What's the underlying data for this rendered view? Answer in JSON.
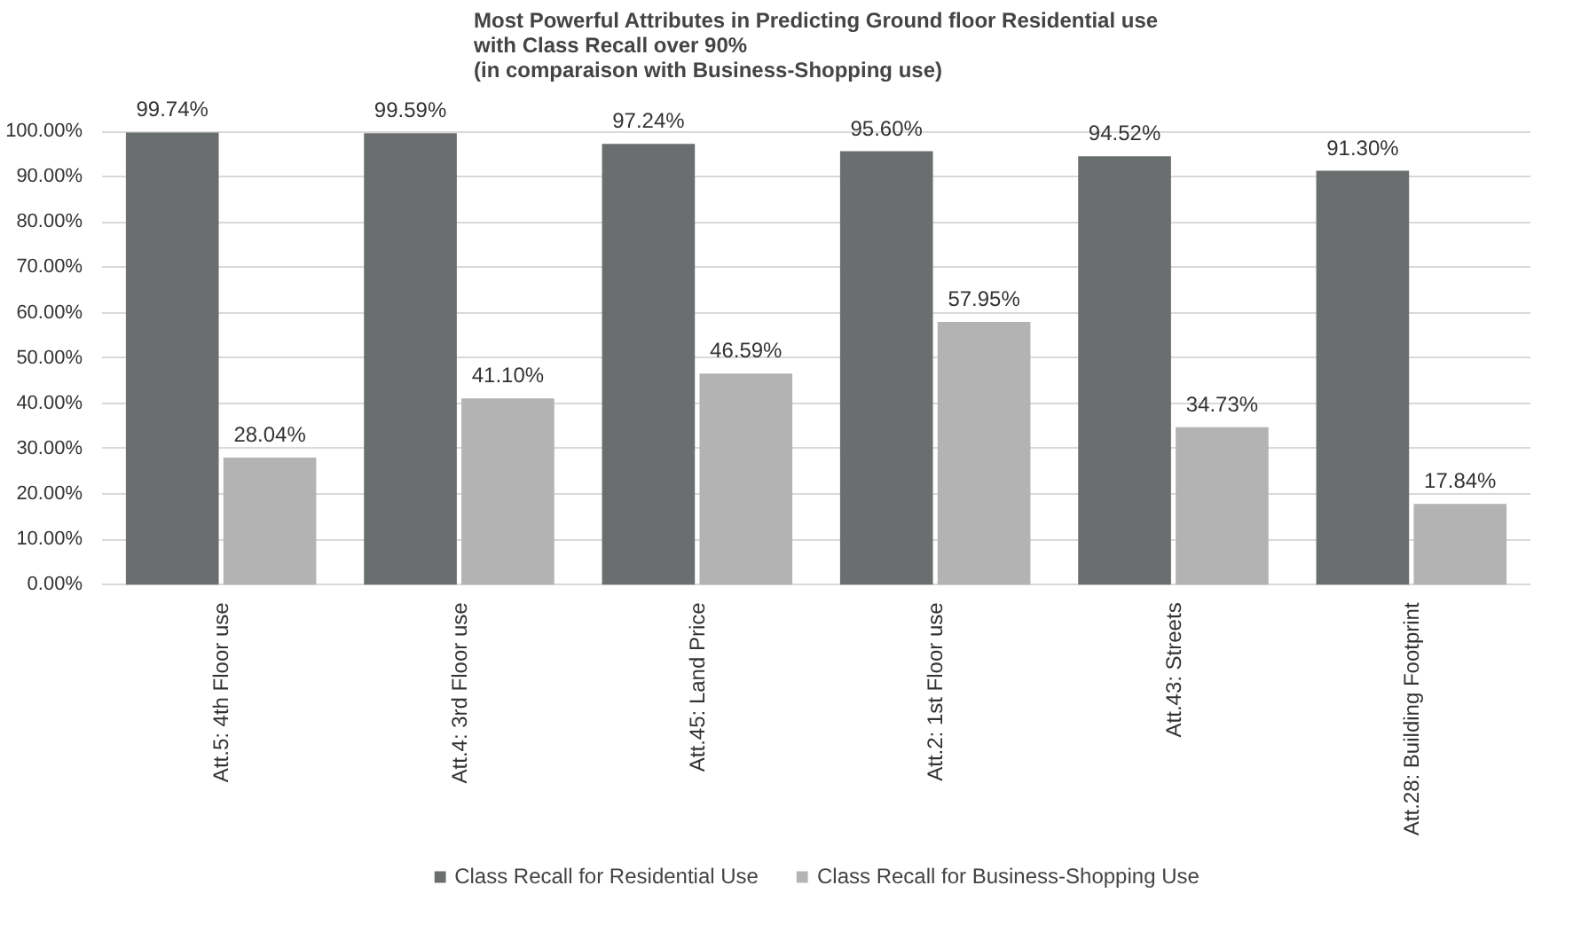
{
  "chart_data": {
    "type": "bar",
    "title": "Most Powerful Attributes in Predicting Ground floor Residential use\nwith Class Recall over 90%\n(in comparaison with Business-Shopping use)",
    "categories": [
      "Att.5: 4th Floor use",
      "Att.4: 3rd Floor use",
      "Att.45: Land Price",
      "Att.2: 1st Floor use",
      "Att.43: Streets",
      "Att.28: Building Footprint"
    ],
    "series": [
      {
        "name": "Class Recall for Residential Use",
        "color": "#6b6e6e",
        "values": [
          99.74,
          99.59,
          97.24,
          95.6,
          94.52,
          91.3
        ],
        "value_labels": [
          "99.74%",
          "99.59%",
          "97.24%",
          "95.60%",
          "94.52%",
          "91.30%"
        ]
      },
      {
        "name": "Class Recall for Business-Shopping Use",
        "color": "#b3b3b3",
        "values": [
          28.04,
          41.1,
          46.59,
          57.95,
          34.73,
          17.84
        ],
        "value_labels": [
          "28.04%",
          "41.10%",
          "46.59%",
          "57.95%",
          "34.73%",
          "17.84%"
        ]
      }
    ],
    "ylim": [
      0,
      100
    ],
    "yticks": [
      {
        "value": 0,
        "label": "0.00%"
      },
      {
        "value": 10,
        "label": "10.00%"
      },
      {
        "value": 20,
        "label": "20.00%"
      },
      {
        "value": 30,
        "label": "30.00%"
      },
      {
        "value": 40,
        "label": "40.00%"
      },
      {
        "value": 50,
        "label": "50.00%"
      },
      {
        "value": 60,
        "label": "60.00%"
      },
      {
        "value": 70,
        "label": "70.00%"
      },
      {
        "value": 80,
        "label": "80.00%"
      },
      {
        "value": 90,
        "label": "90.00%"
      },
      {
        "value": 100,
        "label": "100.00%"
      }
    ],
    "grid": "y",
    "legend": "bottom"
  }
}
